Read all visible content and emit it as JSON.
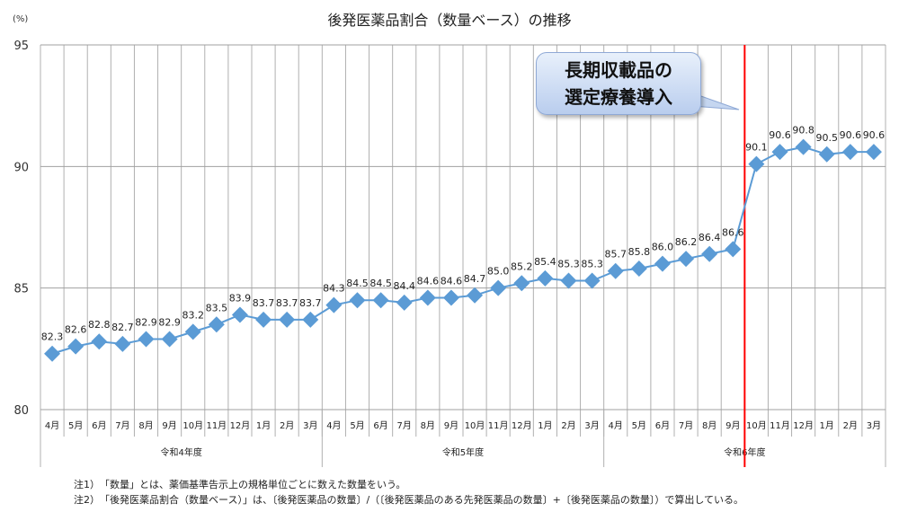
{
  "chart_data": {
    "type": "line",
    "title": "後発医薬品割合（数量ベース）の推移",
    "ylabel": "(%)",
    "ylim": [
      80,
      95
    ],
    "yticks": [
      80,
      85,
      90,
      95
    ],
    "grid": true,
    "categories": [
      "4月",
      "5月",
      "6月",
      "7月",
      "8月",
      "9月",
      "10月",
      "11月",
      "12月",
      "1月",
      "2月",
      "3月",
      "4月",
      "5月",
      "6月",
      "7月",
      "8月",
      "9月",
      "10月",
      "11月",
      "12月",
      "1月",
      "2月",
      "3月",
      "4月",
      "5月",
      "6月",
      "7月",
      "8月",
      "9月",
      "10月",
      "11月",
      "12月",
      "1月",
      "2月",
      "3月"
    ],
    "groups": [
      {
        "label": "令和4年度",
        "count": 12
      },
      {
        "label": "令和5年度",
        "count": 12
      },
      {
        "label": "令和6年度",
        "count": 12
      }
    ],
    "series": [
      {
        "values": [
          82.3,
          82.6,
          82.8,
          82.7,
          82.9,
          82.9,
          83.2,
          83.5,
          83.9,
          83.7,
          83.7,
          83.7,
          84.3,
          84.5,
          84.5,
          84.4,
          84.6,
          84.6,
          84.7,
          85.0,
          85.2,
          85.4,
          85.3,
          85.3,
          85.7,
          85.8,
          86.0,
          86.2,
          86.4,
          86.6,
          90.1,
          90.6,
          90.8,
          90.5,
          90.6,
          90.6
        ],
        "color": "#5b9bd5",
        "marker": "diamond"
      }
    ],
    "marker_line": {
      "between": [
        "令和6年度 9月",
        "令和6年度 10月"
      ],
      "color": "#ff0000"
    },
    "annotation": "長期収載品の\n選定療養導入"
  },
  "notes": [
    "注1）　「数量」とは、薬価基準告示上の規格単位ごとに数えた数量をいう。",
    "注2）　「後発医薬品割合（数量ベース）」は、〔後発医薬品の数量〕/（〔後発医薬品のある先発医薬品の数量〕+〔後発医薬品の数量〕）で算出している。"
  ]
}
